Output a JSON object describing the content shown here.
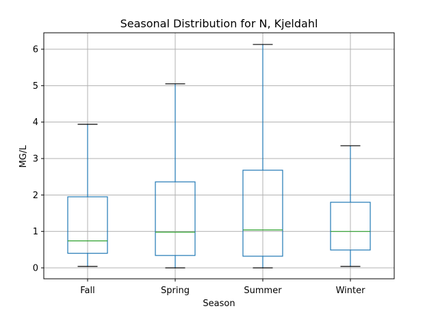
{
  "chart_data": {
    "type": "box",
    "title": "Seasonal Distribution for N, Kjeldahl",
    "xlabel": "Season",
    "ylabel": "MG/L",
    "ylim": [
      -0.3,
      6.45
    ],
    "yticks": [
      0,
      1,
      2,
      3,
      4,
      5,
      6
    ],
    "grid": true,
    "colors": {
      "box": "#1f77b4",
      "median": "#2ca02c",
      "cap": "#000000",
      "grid": "#b0b0b0"
    },
    "categories": [
      "Fall",
      "Spring",
      "Summer",
      "Winter"
    ],
    "boxes": [
      {
        "name": "Fall",
        "whislo": 0.04,
        "q1": 0.4,
        "med": 0.74,
        "q3": 1.95,
        "whishi": 3.94
      },
      {
        "name": "Spring",
        "whislo": 0.0,
        "q1": 0.34,
        "med": 0.98,
        "q3": 2.36,
        "whishi": 5.05
      },
      {
        "name": "Summer",
        "whislo": 0.0,
        "q1": 0.32,
        "med": 1.04,
        "q3": 2.68,
        "whishi": 6.13
      },
      {
        "name": "Winter",
        "whislo": 0.04,
        "q1": 0.49,
        "med": 1.0,
        "q3": 1.8,
        "whishi": 3.35
      }
    ]
  }
}
